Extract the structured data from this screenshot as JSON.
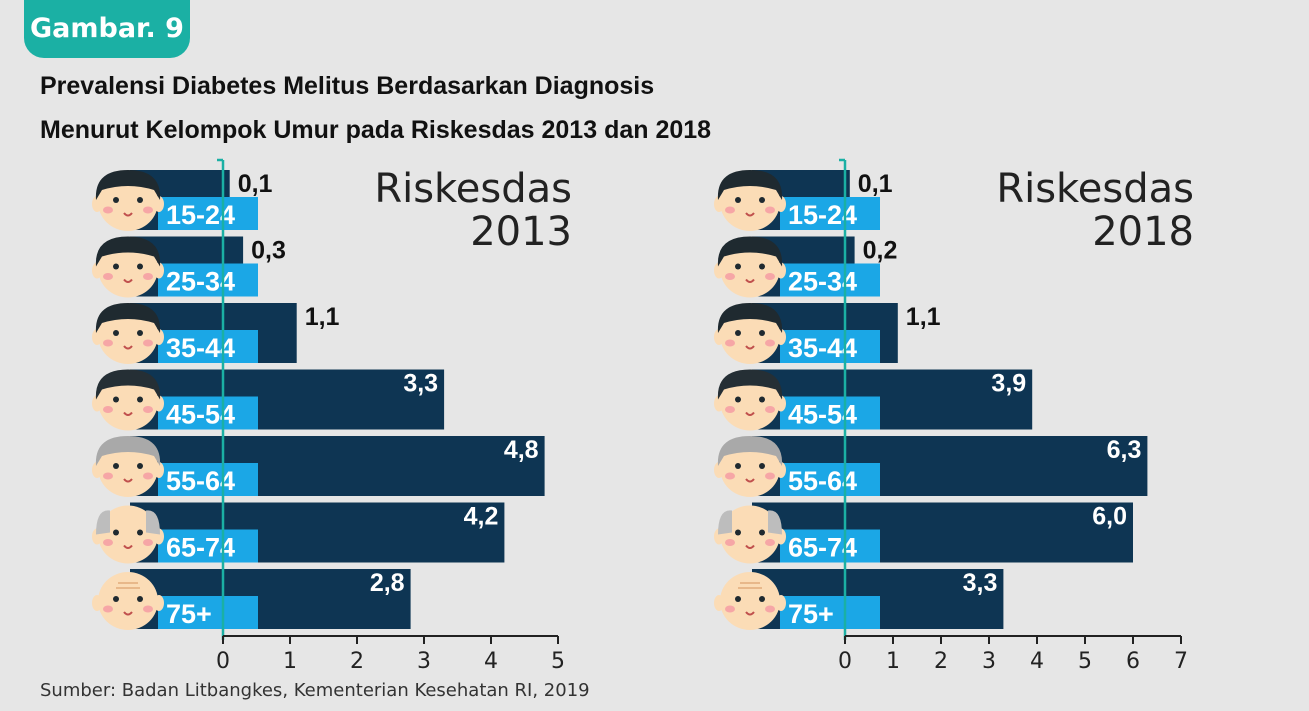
{
  "badge": "Gambar. 9",
  "title_line1": "Prevalensi Diabetes Melitus Berdasarkan Diagnosis",
  "title_line2": "Menurut Kelompok Umur pada Riskesdas 2013 dan 2018",
  "source": "Sumber: Badan Litbangkes, Kementerian Kesehatan RI, 2019",
  "colors": {
    "bar": "#0e3553",
    "age_label_bg": "#1ba7e6",
    "axis_line": "#1bb0a4",
    "skin": "#fbdcb6",
    "cheek": "#f6a6a6"
  },
  "chart_data": [
    {
      "type": "bar",
      "orientation": "horizontal",
      "title": "Riskesdas 2013",
      "title_lines": [
        "Riskesdas",
        "2013"
      ],
      "categories": [
        "15-24",
        "25-34",
        "35-44",
        "45-54",
        "55-64",
        "65-74",
        "75+"
      ],
      "values": [
        0.1,
        0.3,
        1.1,
        3.3,
        4.8,
        4.2,
        2.8
      ],
      "value_labels": [
        "0,1",
        "0,3",
        "1,1",
        "3,3",
        "4,8",
        "4,2",
        "2,8"
      ],
      "xlim": [
        0,
        5
      ],
      "xticks": [
        "0",
        "1",
        "2",
        "3",
        "4",
        "5"
      ],
      "grid": false,
      "legend": "none"
    },
    {
      "type": "bar",
      "orientation": "horizontal",
      "title": "Riskesdas 2018",
      "title_lines": [
        "Riskesdas",
        "2018"
      ],
      "categories": [
        "15-24",
        "25-34",
        "35-44",
        "45-54",
        "55-64",
        "65-74",
        "75+"
      ],
      "values": [
        0.1,
        0.2,
        1.1,
        3.9,
        6.3,
        6.0,
        3.3
      ],
      "value_labels": [
        "0,1",
        "0,2",
        "1,1",
        "3,9",
        "6,3",
        "6,0",
        "3,3"
      ],
      "xlim": [
        0,
        7
      ],
      "xticks": [
        "0",
        "1",
        "2",
        "3",
        "4",
        "5",
        "6",
        "7"
      ],
      "grid": false,
      "legend": "none"
    }
  ]
}
